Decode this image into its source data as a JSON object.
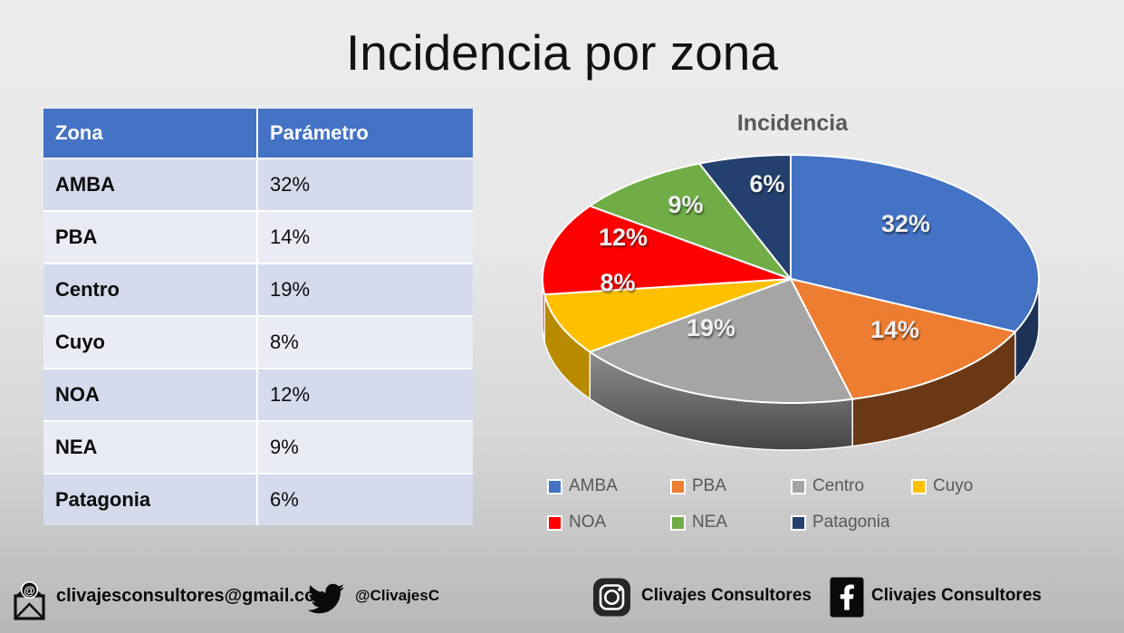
{
  "slide": {
    "title": "Incidencia por zona"
  },
  "table": {
    "columns": [
      "Zona",
      "Parámetro"
    ],
    "rows": [
      {
        "zona": "AMBA",
        "parametro": "32%"
      },
      {
        "zona": "PBA",
        "parametro": "14%"
      },
      {
        "zona": "Centro",
        "parametro": "19%"
      },
      {
        "zona": "Cuyo",
        "parametro": "8%"
      },
      {
        "zona": "NOA",
        "parametro": "12%"
      },
      {
        "zona": "NEA",
        "parametro": "9%"
      },
      {
        "zona": "Patagonia",
        "parametro": "6%"
      }
    ]
  },
  "chart_data": {
    "type": "pie",
    "style": "3d",
    "title": "Incidencia",
    "categories": [
      "AMBA",
      "PBA",
      "Centro",
      "Cuyo",
      "NOA",
      "NEA",
      "Patagonia"
    ],
    "values": [
      32,
      14,
      19,
      8,
      12,
      9,
      6
    ],
    "data_labels": [
      "32%",
      "14%",
      "19%",
      "8%",
      "12%",
      "9%",
      "6%"
    ],
    "colors": [
      "#4472C4",
      "#ED7D31",
      "#A5A5A5",
      "#FFC000",
      "#FF0000",
      "#70AD47",
      "#24406E"
    ],
    "legend_position": "bottom",
    "start_angle_deg": 0,
    "direction": "clockwise"
  },
  "footer": {
    "email": "clivajesconsultores@gmail.com",
    "twitter_handle": "@ClivajesC",
    "instagram_name": "Clivajes Consultores",
    "facebook_name": "Clivajes Consultores"
  },
  "colors": {
    "table_header_bg": "#4472C4",
    "table_row_dark": "#D5DAEC",
    "table_row_light": "#EAECF5",
    "legend_text": "#595959",
    "chart_title_text": "#595959"
  }
}
